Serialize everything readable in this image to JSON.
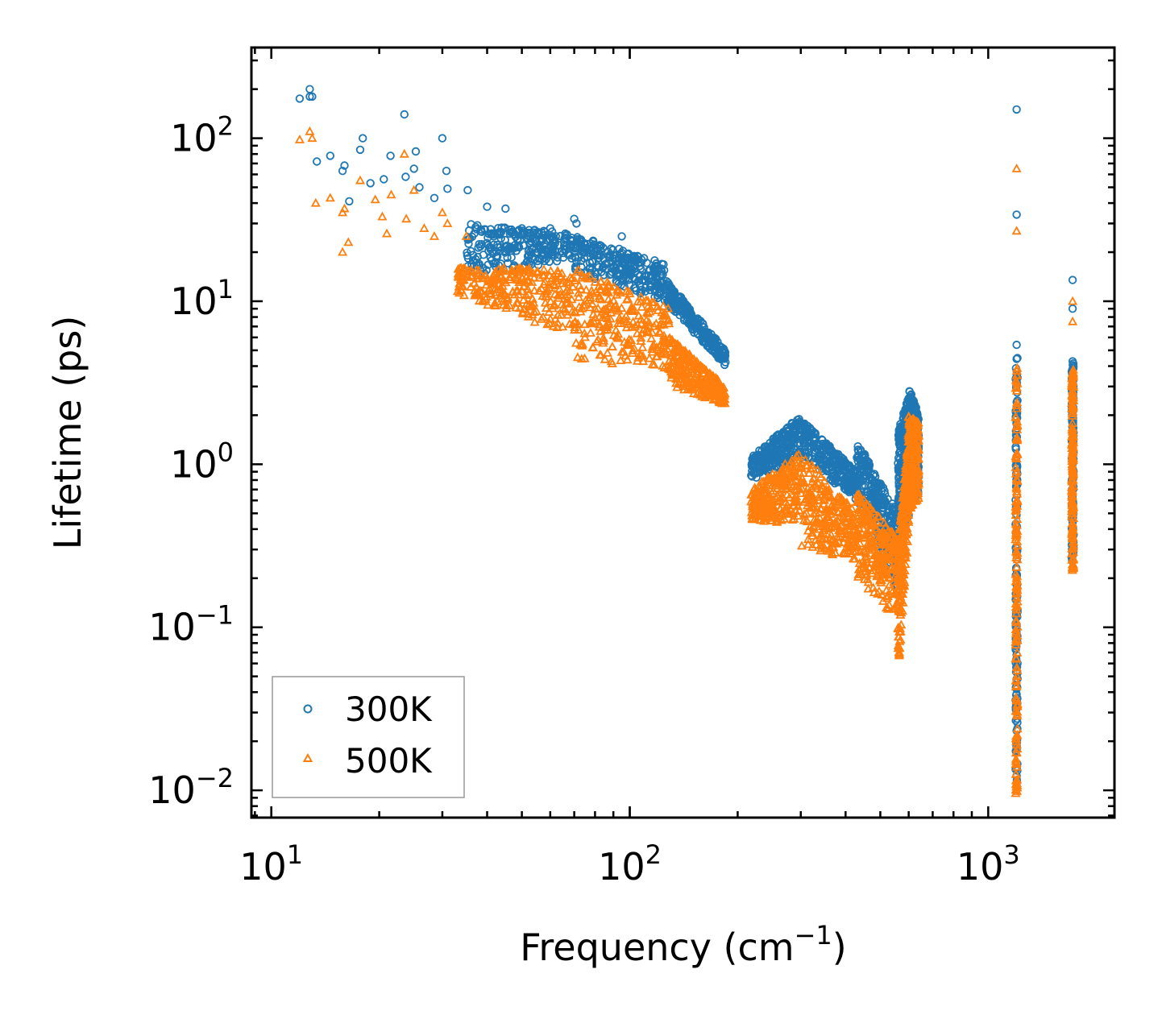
{
  "chart_data": {
    "type": "scatter",
    "xscale": "log",
    "yscale": "log",
    "xlim": [
      8.8,
      2250
    ],
    "ylim": [
      0.0068,
      360
    ],
    "xlabel": "Frequency (cm",
    "xlabel_sup": "−1",
    "xlabel_end": ")",
    "ylabel": "Lifetime (ps)",
    "x_ticks": [
      {
        "base": "10",
        "exp": "1",
        "value": 10
      },
      {
        "base": "10",
        "exp": "2",
        "value": 100
      },
      {
        "base": "10",
        "exp": "3",
        "value": 1000
      }
    ],
    "y_ticks": [
      {
        "base": "10",
        "exp": "−2",
        "value": 0.01
      },
      {
        "base": "10",
        "exp": "−1",
        "value": 0.1
      },
      {
        "base": "10",
        "exp": "0",
        "value": 1
      },
      {
        "base": "10",
        "exp": "1",
        "value": 10
      },
      {
        "base": "10",
        "exp": "2",
        "value": 100
      }
    ],
    "legend_position": "lower-left",
    "series": [
      {
        "name": "300K",
        "marker": "circle",
        "color": "#1f77b4",
        "points": [
          [
            12,
            175
          ],
          [
            12.8,
            200
          ],
          [
            12.8,
            180
          ],
          [
            13,
            180
          ],
          [
            13.4,
            72
          ],
          [
            14.6,
            78
          ],
          [
            15.8,
            63
          ],
          [
            16,
            68
          ],
          [
            16.5,
            41
          ],
          [
            17.7,
            85
          ],
          [
            18,
            100
          ],
          [
            18.9,
            53
          ],
          [
            20.6,
            56
          ],
          [
            21.5,
            78
          ],
          [
            23.5,
            140
          ],
          [
            23.7,
            58
          ],
          [
            25,
            65
          ],
          [
            25.3,
            83
          ],
          [
            25.9,
            50
          ],
          [
            28.5,
            43
          ],
          [
            30,
            100
          ],
          [
            30.8,
            63
          ],
          [
            31,
            49
          ],
          [
            35.3,
            48
          ],
          [
            40,
            38
          ],
          [
            45,
            37
          ],
          [
            50,
            28
          ],
          [
            60,
            28
          ],
          [
            70,
            32
          ],
          [
            71,
            30
          ],
          [
            95,
            25
          ],
          [
            1200,
            150
          ],
          [
            1200,
            34
          ],
          [
            1200,
            5.4
          ],
          [
            1720,
            13.5
          ],
          [
            1720,
            9
          ]
        ],
        "bands": [
          {
            "x": [
              35,
              70
            ],
            "y_lo": [
              14,
              18
            ],
            "y_hi": [
              30,
              26
            ]
          },
          {
            "x": [
              70,
              125
            ],
            "y_lo": [
              15,
              10
            ],
            "y_hi": [
              26,
              17
            ]
          },
          {
            "x": [
              125,
              185
            ],
            "y_lo": [
              10,
              4
            ],
            "y_hi": [
              14,
              5
            ]
          },
          {
            "x": [
              218,
              300
            ],
            "y_lo": [
              0.8,
              1.1
            ],
            "y_hi": [
              1.1,
              2
            ]
          },
          {
            "x": [
              300,
              430
            ],
            "y_lo": [
              1.1,
              0.6
            ],
            "y_hi": [
              1.9,
              0.9
            ]
          },
          {
            "x": [
              430,
              560
            ],
            "y_lo": [
              0.6,
              0.17
            ],
            "y_hi": [
              1.4,
              0.5
            ]
          },
          {
            "x": [
              560,
              600
            ],
            "y_lo": [
              0.3,
              0.4
            ],
            "y_hi": [
              1.6,
              2.6
            ]
          },
          {
            "x": [
              600,
              640
            ],
            "y_lo": [
              0.6,
              0.6
            ],
            "y_hi": [
              3,
              2
            ]
          }
        ],
        "columns": [
          {
            "x": 1200,
            "y_lo": 0.011,
            "y_hi": 4.5
          },
          {
            "x": 1720,
            "y_lo": 0.25,
            "y_hi": 4.3
          }
        ]
      },
      {
        "name": "500K",
        "marker": "triangle",
        "color": "#ff7f0e",
        "points": [
          [
            12,
            98
          ],
          [
            12.8,
            110
          ],
          [
            13,
            100
          ],
          [
            13.3,
            40
          ],
          [
            14.6,
            43
          ],
          [
            15.8,
            35
          ],
          [
            16,
            37
          ],
          [
            16.4,
            23
          ],
          [
            15.8,
            20
          ],
          [
            17.7,
            55
          ],
          [
            19.5,
            42
          ],
          [
            20.4,
            33
          ],
          [
            21,
            26
          ],
          [
            21.6,
            45
          ],
          [
            23.5,
            80
          ],
          [
            23.8,
            32
          ],
          [
            25,
            48
          ],
          [
            26.7,
            28
          ],
          [
            28.5,
            25
          ],
          [
            30,
            35
          ],
          [
            31,
            30
          ],
          [
            35,
            25
          ],
          [
            1200,
            65
          ],
          [
            1200,
            27
          ],
          [
            1720,
            10
          ],
          [
            1720,
            7.5
          ]
        ],
        "bands": [
          {
            "x": [
              33,
              70
            ],
            "y_lo": [
              11,
              6
            ],
            "y_hi": [
              16,
              16
            ]
          },
          {
            "x": [
              70,
              130
            ],
            "y_lo": [
              4.5,
              3.5
            ],
            "y_hi": [
              16,
              9
            ]
          },
          {
            "x": [
              130,
              185
            ],
            "y_lo": [
              3,
              2.3
            ],
            "y_hi": [
              6,
              3
            ]
          },
          {
            "x": [
              218,
              300
            ],
            "y_lo": [
              0.42,
              0.45
            ],
            "y_hi": [
              0.7,
              1.2
            ]
          },
          {
            "x": [
              300,
              430
            ],
            "y_lo": [
              0.3,
              0.25
            ],
            "y_hi": [
              1.2,
              0.5
            ]
          },
          {
            "x": [
              430,
              560
            ],
            "y_lo": [
              0.2,
              0.11
            ],
            "y_hi": [
              0.7,
              0.35
            ]
          },
          {
            "x": [
              560,
              600
            ],
            "y_lo": [
              0.05,
              0.4
            ],
            "y_hi": [
              0.3,
              1.6
            ]
          },
          {
            "x": [
              600,
              640
            ],
            "y_lo": [
              0.5,
              0.6
            ],
            "y_hi": [
              2.0,
              1.8
            ]
          }
        ],
        "columns": [
          {
            "x": 1200,
            "y_lo": 0.0095,
            "y_hi": 4
          },
          {
            "x": 1720,
            "y_lo": 0.22,
            "y_hi": 3.8
          }
        ]
      }
    ]
  }
}
